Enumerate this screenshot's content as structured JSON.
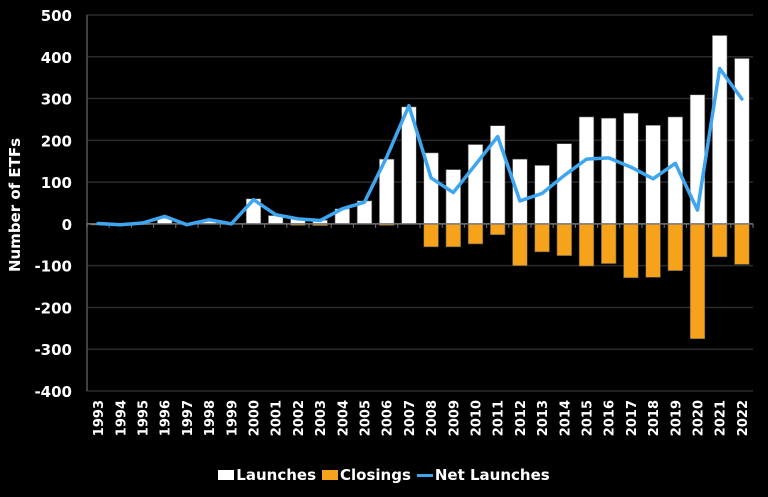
{
  "chart_data": {
    "type": "bar",
    "title": "",
    "xlabel": "",
    "ylabel": "Number of ETFs",
    "ylim": [
      -400,
      500
    ],
    "yticks": [
      500,
      400,
      300,
      200,
      100,
      0,
      -100,
      -200,
      -300,
      -400
    ],
    "grid": true,
    "legend_position": "bottom",
    "categories": [
      "1993",
      "1994",
      "1995",
      "1996",
      "1997",
      "1998",
      "1999",
      "2000",
      "2001",
      "2002",
      "2003",
      "2004",
      "2005",
      "2006",
      "2007",
      "2008",
      "2009",
      "2010",
      "2011",
      "2012",
      "2013",
      "2014",
      "2015",
      "2016",
      "2017",
      "2018",
      "2019",
      "2020",
      "2021",
      "2022"
    ],
    "series": [
      {
        "name": "Launches",
        "type": "bar",
        "color": "#ffffff",
        "values": [
          1,
          0,
          2,
          14,
          0,
          9,
          0,
          60,
          20,
          13,
          9,
          36,
          55,
          155,
          280,
          170,
          130,
          190,
          235,
          155,
          140,
          192,
          256,
          253,
          265,
          236,
          256,
          309,
          451,
          396
        ]
      },
      {
        "name": "Closings",
        "type": "bar",
        "color": "#f7a21b",
        "values": [
          0,
          0,
          0,
          0,
          0,
          0,
          0,
          0,
          0,
          -3,
          -4,
          0,
          0,
          -2,
          0,
          -55,
          -55,
          -48,
          -26,
          -100,
          -67,
          -76,
          -101,
          -95,
          -129,
          -128,
          -112,
          -275,
          -79,
          -97
        ]
      },
      {
        "name": "Net Launches",
        "type": "line",
        "color": "#3ea6f0",
        "values": [
          1,
          -2,
          2,
          18,
          -2,
          10,
          0,
          58,
          22,
          12,
          8,
          36,
          52,
          160,
          283,
          110,
          75,
          142,
          209,
          55,
          73,
          116,
          155,
          158,
          136,
          108,
          145,
          33,
          372,
          299
        ]
      }
    ]
  },
  "legend": {
    "items": [
      {
        "label": "Launches",
        "color": "#ffffff",
        "kind": "box"
      },
      {
        "label": "Closings",
        "color": "#f7a21b",
        "kind": "box"
      },
      {
        "label": "Net Launches",
        "color": "#3ea6f0",
        "kind": "line"
      }
    ]
  },
  "axis": {
    "ylabel": "Number of ETFs"
  }
}
